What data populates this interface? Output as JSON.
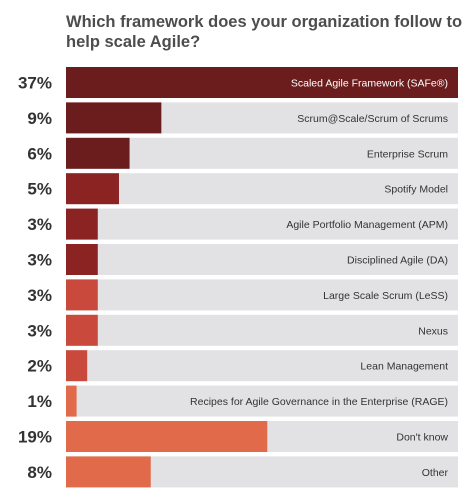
{
  "chart_data": {
    "type": "bar",
    "orientation": "horizontal",
    "title": "Which framework does your organization follow to help scale Agile?",
    "categories": [
      "Scaled Agile Framework (SAFe®)",
      "Scrum@Scale/Scrum of Scrums",
      "Enterprise Scrum",
      "Spotify Model",
      "Agile Portfolio Management (APM)",
      "Disciplined Agile (DA)",
      "Large Scale Scrum (LeSS)",
      "Nexus",
      "Lean Management",
      "Recipes for Agile Governance in the Enterprise (RAGE)",
      "Don't know",
      "Other"
    ],
    "values": [
      37,
      9,
      6,
      5,
      3,
      3,
      3,
      3,
      2,
      1,
      19,
      8
    ],
    "value_labels": [
      "37%",
      "9%",
      "6%",
      "5%",
      "3%",
      "3%",
      "3%",
      "3%",
      "2%",
      "1%",
      "19%",
      "8%"
    ],
    "xlim": [
      0,
      37
    ],
    "bar_colors": [
      "#6b1d1d",
      "#6b1d1d",
      "#6b1d1d",
      "#8b2323",
      "#8b2323",
      "#8b2323",
      "#c94a3c",
      "#c94a3c",
      "#c94a3c",
      "#e06a4a",
      "#e06a4a",
      "#e06a4a"
    ],
    "track_color": "#e2e2e4",
    "text_color": "#333333"
  }
}
